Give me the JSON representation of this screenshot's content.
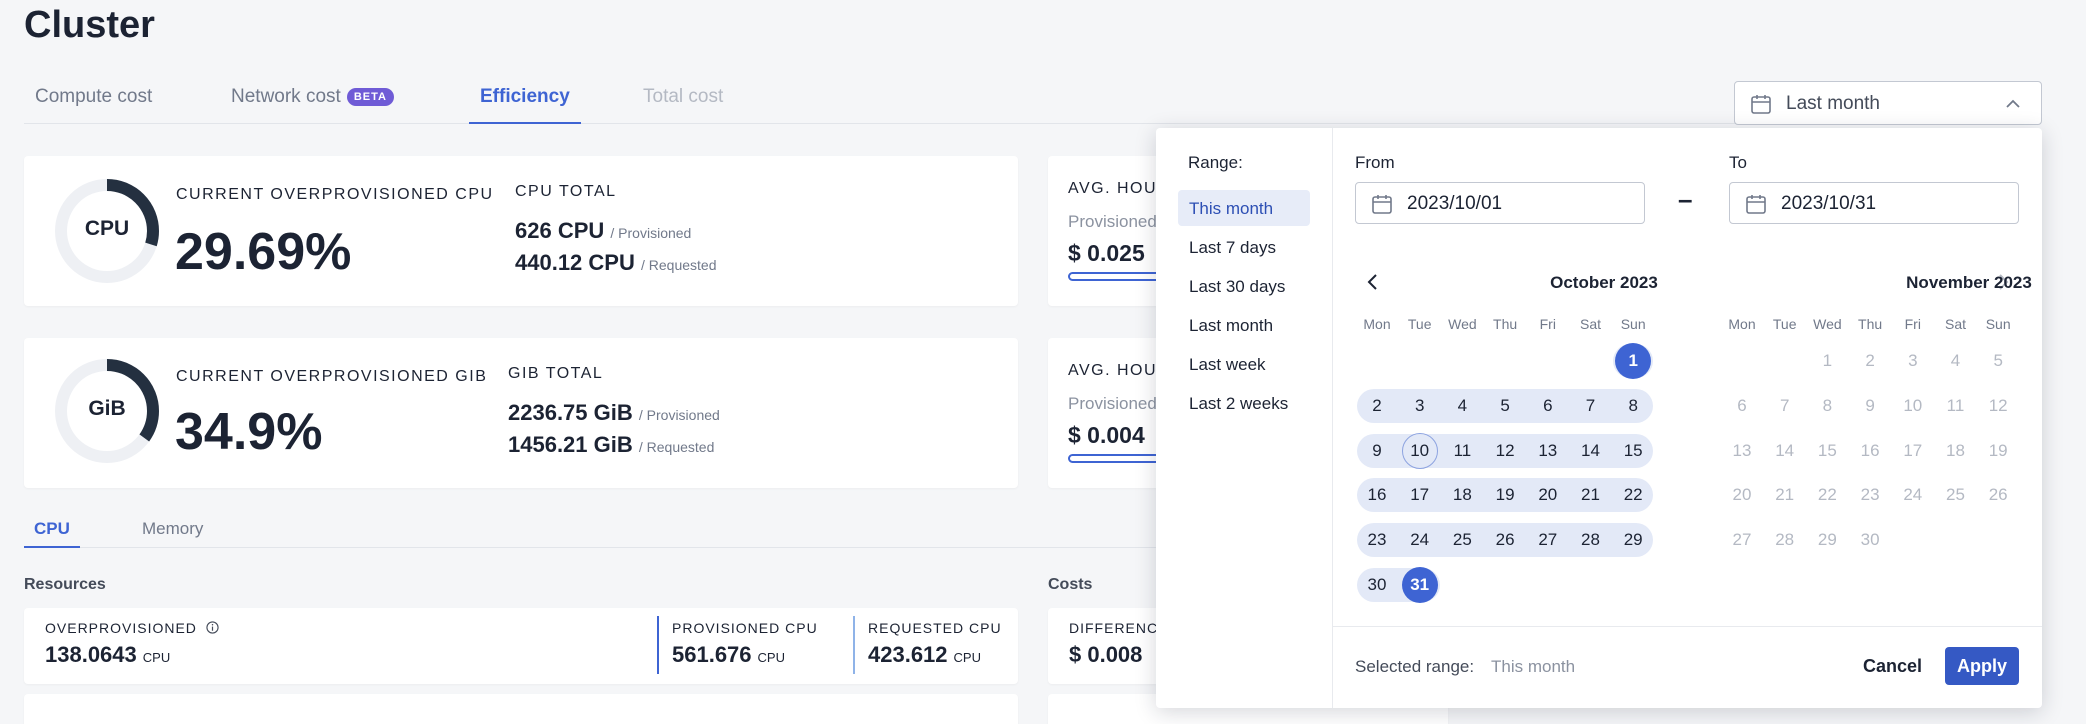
{
  "page": {
    "title": "Cluster"
  },
  "tabs": [
    {
      "label": "Compute cost"
    },
    {
      "label": "Network cost",
      "badge": "BETA"
    },
    {
      "label": "Efficiency"
    },
    {
      "label": "Total cost"
    }
  ],
  "active_tab": "Efficiency",
  "date_range": {
    "trigger_label": "Last month"
  },
  "cards": {
    "cpu": {
      "donut_label": "CPU",
      "overprovisioned_fraction": 0.2969,
      "kpi_label": "CURRENT OVERPROVISIONED CPU",
      "kpi_value": "29.69%",
      "total_label": "CPU TOTAL",
      "provisioned_value": "626 CPU",
      "provisioned_suffix": "/ Provisioned",
      "requested_value": "440.12 CPU",
      "requested_suffix": "/ Requested"
    },
    "gib": {
      "donut_label": "GiB",
      "overprovisioned_fraction": 0.349,
      "kpi_label": "CURRENT OVERPROVISIONED GIB",
      "kpi_value": "34.9%",
      "total_label": "GIB TOTAL",
      "provisioned_value": "2236.75 GiB",
      "provisioned_suffix": "/ Provisioned",
      "requested_value": "1456.21 GiB",
      "requested_suffix": "/ Requested"
    },
    "avg_cpu": {
      "label": "AVG. HOU",
      "sub": "Provisioned",
      "value": "$ 0.025"
    },
    "avg_gib": {
      "label": "AVG. HOU",
      "sub": "Provisioned",
      "value": "$ 0.004"
    }
  },
  "subtabs": {
    "cpu": "CPU",
    "memory": "Memory"
  },
  "resources": {
    "title": "Resources",
    "overprovisioned": {
      "label": "OVERPROVISIONED",
      "value": "138.0643",
      "unit": "CPU"
    },
    "provisioned": {
      "label": "PROVISIONED CPU",
      "value": "561.676",
      "unit": "CPU"
    },
    "requested": {
      "label": "REQUESTED CPU",
      "value": "423.612",
      "unit": "CPU"
    }
  },
  "costs": {
    "title": "Costs",
    "difference": {
      "label": "DIFFERENCE",
      "value": "$ 0.008"
    }
  },
  "picker": {
    "range_label": "Range:",
    "presets": [
      "This month",
      "Last 7 days",
      "Last 30 days",
      "Last month",
      "Last week",
      "Last 2 weeks"
    ],
    "active_preset": "This month",
    "from_label": "From",
    "from_value": "2023/10/01",
    "dash": "–",
    "to_label": "To",
    "to_value": "2023/10/31",
    "weekdays": [
      "Mon",
      "Tue",
      "Wed",
      "Thu",
      "Fri",
      "Sat",
      "Sun"
    ],
    "left_month": {
      "title": "October 2023",
      "first_weekday_index": 6,
      "days": 31,
      "range_start": 1,
      "range_end": 31,
      "today": 10
    },
    "right_month": {
      "title": "November 2023",
      "first_weekday_index": 2,
      "days": 30
    },
    "selected_range_label": "Selected range:",
    "selected_range_value": "This month",
    "cancel_label": "Cancel",
    "apply_label": "Apply"
  },
  "colors": {
    "accent": "#3e64d3",
    "range_band": "#e3e9f7",
    "donut_dark": "#243040",
    "donut_track": "#eef0f4",
    "beta_badge": "#6f5bd6"
  }
}
